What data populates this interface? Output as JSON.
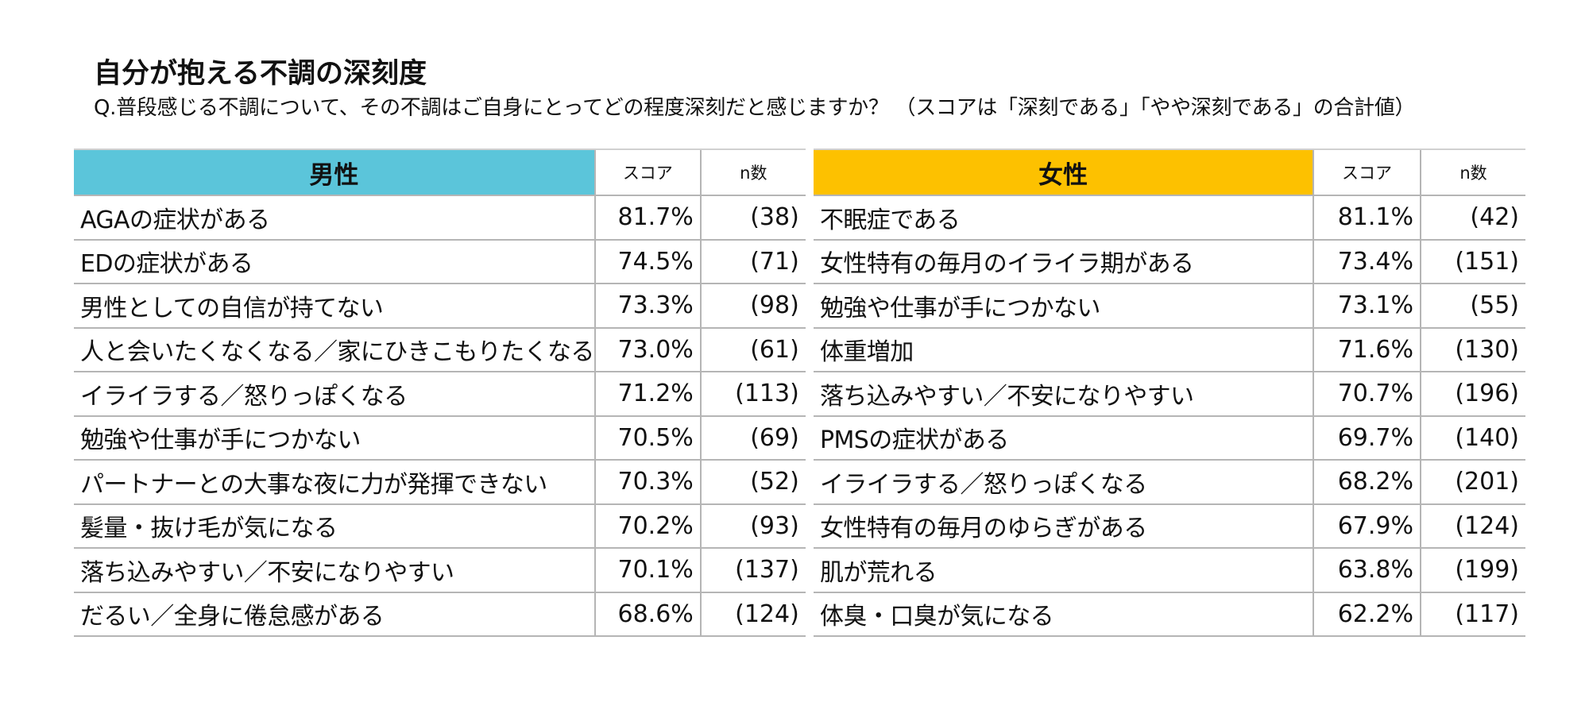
{
  "title": "自分が抱える不調の深刻度",
  "question": "Q.普段感じる不調について、その不調はご自身にとってどの程度深刻だと感じますか？ （スコアは「深刻である」「やや深刻である」の合計値）",
  "male": {
    "header": "男性",
    "header_color": "#5bc5da",
    "score_label": "スコア",
    "n_label": "n数",
    "rows": [
      {
        "item": "AGAの症状がある",
        "score": "81.7%",
        "n": "(38)"
      },
      {
        "item": "EDの症状がある",
        "score": "74.5%",
        "n": "(71)"
      },
      {
        "item": "男性としての自信が持てない",
        "score": "73.3%",
        "n": "(98)"
      },
      {
        "item": "人と会いたくなくなる／家にひきこもりたくなる",
        "score": "73.0%",
        "n": "(61)"
      },
      {
        "item": "イライラする／怒りっぽくなる",
        "score": "71.2%",
        "n": "(113)"
      },
      {
        "item": "勉強や仕事が手につかない",
        "score": "70.5%",
        "n": "(69)"
      },
      {
        "item": "パートナーとの大事な夜に力が発揮できない",
        "score": "70.3%",
        "n": "(52)"
      },
      {
        "item": "髪量・抜け毛が気になる",
        "score": "70.2%",
        "n": "(93)"
      },
      {
        "item": "落ち込みやすい／不安になりやすい",
        "score": "70.1%",
        "n": "(137)"
      },
      {
        "item": "だるい／全身に倦怠感がある",
        "score": "68.6%",
        "n": "(124)"
      }
    ]
  },
  "female": {
    "header": "女性",
    "header_color": "#fdc100",
    "score_label": "スコア",
    "n_label": "n数",
    "rows": [
      {
        "item": "不眠症である",
        "score": "81.1%",
        "n": "(42)"
      },
      {
        "item": "女性特有の毎月のイライラ期がある",
        "score": "73.4%",
        "n": "(151)"
      },
      {
        "item": "勉強や仕事が手につかない",
        "score": "73.1%",
        "n": "(55)"
      },
      {
        "item": "体重増加",
        "score": "71.6%",
        "n": "(130)"
      },
      {
        "item": "落ち込みやすい／不安になりやすい",
        "score": "70.7%",
        "n": "(196)"
      },
      {
        "item": "PMSの症状がある",
        "score": "69.7%",
        "n": "(140)"
      },
      {
        "item": "イライラする／怒りっぽくなる",
        "score": "68.2%",
        "n": "(201)"
      },
      {
        "item": "女性特有の毎月のゆらぎがある",
        "score": "67.9%",
        "n": "(124)"
      },
      {
        "item": "肌が荒れる",
        "score": "63.8%",
        "n": "(199)"
      },
      {
        "item": "体臭・口臭が気になる",
        "score": "62.2%",
        "n": "(117)"
      }
    ]
  }
}
